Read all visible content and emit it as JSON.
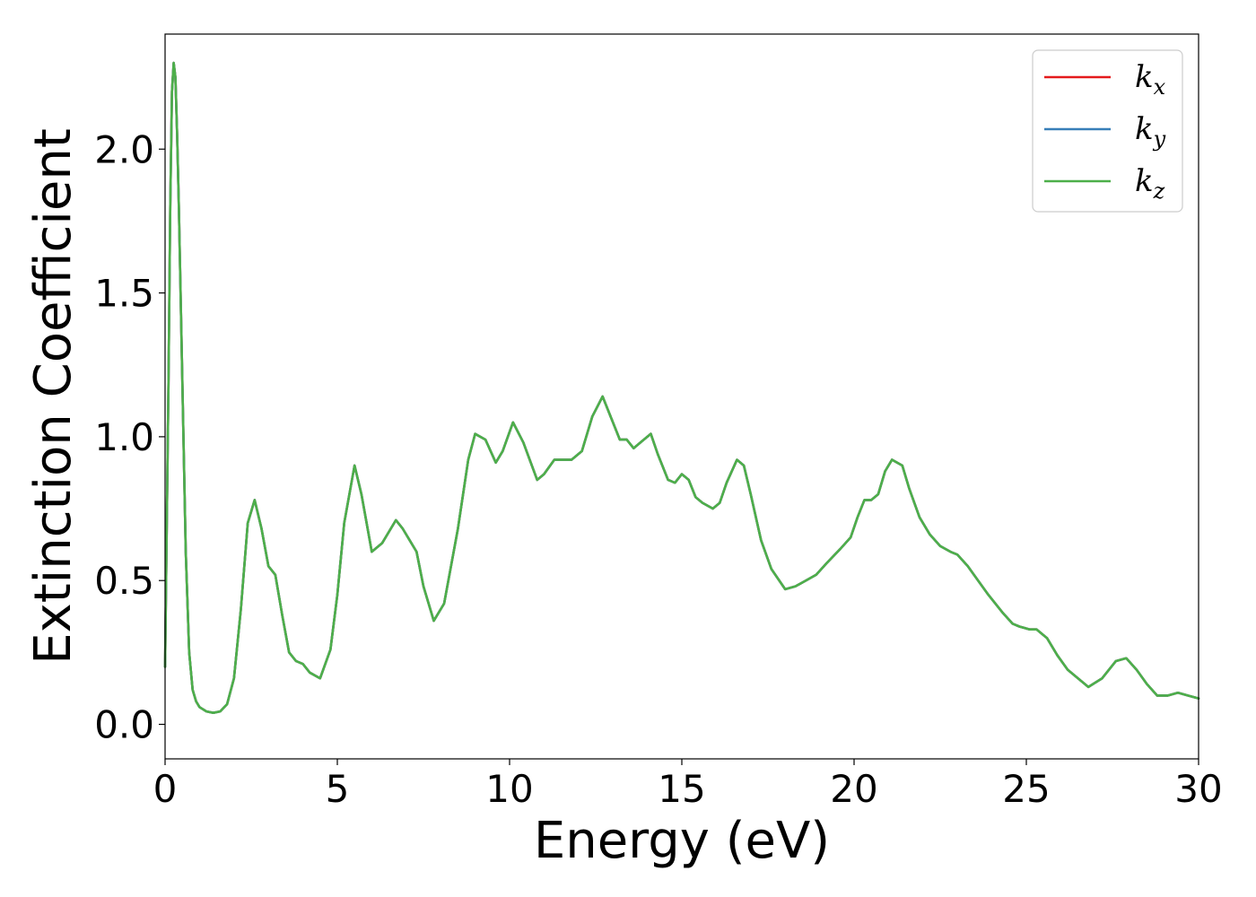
{
  "chart_data": {
    "type": "line",
    "title": "",
    "xlabel": "Energy (eV)",
    "ylabel": "Extinction Coefficient",
    "xlim": [
      0,
      30
    ],
    "ylim": [
      -0.12,
      2.4
    ],
    "xticks": [
      0,
      5,
      10,
      15,
      20,
      25,
      30
    ],
    "xtick_labels": [
      "0",
      "5",
      "10",
      "15",
      "20",
      "25",
      "30"
    ],
    "yticks": [
      0.0,
      0.5,
      1.0,
      1.5,
      2.0
    ],
    "ytick_labels": [
      "0.0",
      "0.5",
      "1.0",
      "1.5",
      "2.0"
    ],
    "grid": false,
    "legend_position": "top-right",
    "x": [
      0,
      0.1,
      0.15,
      0.2,
      0.25,
      0.3,
      0.35,
      0.4,
      0.5,
      0.6,
      0.7,
      0.8,
      0.9,
      1.0,
      1.2,
      1.4,
      1.6,
      1.8,
      2.0,
      2.2,
      2.4,
      2.6,
      2.8,
      3.0,
      3.2,
      3.4,
      3.6,
      3.8,
      4.0,
      4.2,
      4.5,
      4.8,
      5.0,
      5.2,
      5.5,
      5.7,
      6.0,
      6.3,
      6.7,
      6.9,
      7.1,
      7.3,
      7.5,
      7.8,
      8.1,
      8.5,
      8.8,
      9.0,
      9.3,
      9.6,
      9.8,
      10.1,
      10.4,
      10.8,
      11.0,
      11.3,
      11.5,
      11.8,
      12.1,
      12.4,
      12.7,
      13.0,
      13.2,
      13.4,
      13.6,
      13.8,
      14.1,
      14.3,
      14.6,
      14.8,
      15.0,
      15.2,
      15.4,
      15.6,
      15.9,
      16.1,
      16.3,
      16.6,
      16.8,
      17.0,
      17.3,
      17.6,
      18.0,
      18.3,
      18.6,
      18.9,
      19.2,
      19.6,
      19.9,
      20.1,
      20.3,
      20.5,
      20.7,
      20.9,
      21.1,
      21.4,
      21.6,
      21.9,
      22.2,
      22.5,
      22.8,
      23.0,
      23.3,
      23.6,
      23.9,
      24.3,
      24.6,
      24.8,
      25.1,
      25.3,
      25.6,
      25.9,
      26.2,
      26.5,
      26.8,
      27.2,
      27.6,
      27.9,
      28.2,
      28.5,
      28.8,
      29.1,
      29.4,
      29.7,
      30.0
    ],
    "series": [
      {
        "name": "k_x",
        "color": "#e41a1c",
        "values": [
          0.2,
          1.2,
          1.8,
          2.2,
          2.3,
          2.25,
          2.05,
          1.8,
          1.2,
          0.6,
          0.25,
          0.12,
          0.08,
          0.06,
          0.045,
          0.04,
          0.045,
          0.07,
          0.16,
          0.4,
          0.7,
          0.78,
          0.68,
          0.55,
          0.52,
          0.38,
          0.25,
          0.22,
          0.21,
          0.18,
          0.16,
          0.26,
          0.45,
          0.7,
          0.9,
          0.8,
          0.6,
          0.63,
          0.71,
          0.68,
          0.64,
          0.6,
          0.48,
          0.36,
          0.42,
          0.68,
          0.92,
          1.01,
          0.99,
          0.91,
          0.95,
          1.05,
          0.98,
          0.85,
          0.87,
          0.92,
          0.92,
          0.92,
          0.95,
          1.07,
          1.14,
          1.05,
          0.99,
          0.99,
          0.96,
          0.98,
          1.01,
          0.94,
          0.85,
          0.84,
          0.87,
          0.85,
          0.79,
          0.77,
          0.75,
          0.77,
          0.84,
          0.92,
          0.9,
          0.8,
          0.64,
          0.54,
          0.47,
          0.48,
          0.5,
          0.52,
          0.56,
          0.61,
          0.65,
          0.72,
          0.78,
          0.78,
          0.8,
          0.88,
          0.92,
          0.9,
          0.82,
          0.72,
          0.66,
          0.62,
          0.6,
          0.59,
          0.55,
          0.5,
          0.45,
          0.39,
          0.35,
          0.34,
          0.33,
          0.33,
          0.3,
          0.24,
          0.19,
          0.16,
          0.13,
          0.16,
          0.22,
          0.23,
          0.19,
          0.14,
          0.1,
          0.1,
          0.11,
          0.1,
          0.09
        ]
      },
      {
        "name": "k_y",
        "color": "#377eb8",
        "values": [
          0.2,
          1.2,
          1.8,
          2.2,
          2.3,
          2.25,
          2.05,
          1.8,
          1.2,
          0.6,
          0.25,
          0.12,
          0.08,
          0.06,
          0.045,
          0.04,
          0.045,
          0.07,
          0.16,
          0.4,
          0.7,
          0.78,
          0.68,
          0.55,
          0.52,
          0.38,
          0.25,
          0.22,
          0.21,
          0.18,
          0.16,
          0.26,
          0.45,
          0.7,
          0.9,
          0.8,
          0.6,
          0.63,
          0.71,
          0.68,
          0.64,
          0.6,
          0.48,
          0.36,
          0.42,
          0.68,
          0.92,
          1.01,
          0.99,
          0.91,
          0.95,
          1.05,
          0.98,
          0.85,
          0.87,
          0.92,
          0.92,
          0.92,
          0.95,
          1.07,
          1.14,
          1.05,
          0.99,
          0.99,
          0.96,
          0.98,
          1.01,
          0.94,
          0.85,
          0.84,
          0.87,
          0.85,
          0.79,
          0.77,
          0.75,
          0.77,
          0.84,
          0.92,
          0.9,
          0.8,
          0.64,
          0.54,
          0.47,
          0.48,
          0.5,
          0.52,
          0.56,
          0.61,
          0.65,
          0.72,
          0.78,
          0.78,
          0.8,
          0.88,
          0.92,
          0.9,
          0.82,
          0.72,
          0.66,
          0.62,
          0.6,
          0.59,
          0.55,
          0.5,
          0.45,
          0.39,
          0.35,
          0.34,
          0.33,
          0.33,
          0.3,
          0.24,
          0.19,
          0.16,
          0.13,
          0.16,
          0.22,
          0.23,
          0.19,
          0.14,
          0.1,
          0.1,
          0.11,
          0.1,
          0.09
        ]
      },
      {
        "name": "k_z",
        "color": "#4daf4a",
        "values": [
          0.2,
          1.2,
          1.8,
          2.2,
          2.3,
          2.25,
          2.05,
          1.8,
          1.2,
          0.6,
          0.25,
          0.12,
          0.08,
          0.06,
          0.045,
          0.04,
          0.045,
          0.07,
          0.16,
          0.4,
          0.7,
          0.78,
          0.68,
          0.55,
          0.52,
          0.38,
          0.25,
          0.22,
          0.21,
          0.18,
          0.16,
          0.26,
          0.45,
          0.7,
          0.9,
          0.8,
          0.6,
          0.63,
          0.71,
          0.68,
          0.64,
          0.6,
          0.48,
          0.36,
          0.42,
          0.68,
          0.92,
          1.01,
          0.99,
          0.91,
          0.95,
          1.05,
          0.98,
          0.85,
          0.87,
          0.92,
          0.92,
          0.92,
          0.95,
          1.07,
          1.14,
          1.05,
          0.99,
          0.99,
          0.96,
          0.98,
          1.01,
          0.94,
          0.85,
          0.84,
          0.87,
          0.85,
          0.79,
          0.77,
          0.75,
          0.77,
          0.84,
          0.92,
          0.9,
          0.8,
          0.64,
          0.54,
          0.47,
          0.48,
          0.5,
          0.52,
          0.56,
          0.61,
          0.65,
          0.72,
          0.78,
          0.78,
          0.8,
          0.88,
          0.92,
          0.9,
          0.82,
          0.72,
          0.66,
          0.62,
          0.6,
          0.59,
          0.55,
          0.5,
          0.45,
          0.39,
          0.35,
          0.34,
          0.33,
          0.33,
          0.3,
          0.24,
          0.19,
          0.16,
          0.13,
          0.16,
          0.22,
          0.23,
          0.19,
          0.14,
          0.1,
          0.1,
          0.11,
          0.1,
          0.09
        ]
      }
    ],
    "legend": [
      {
        "symbol": "k",
        "subscript": "x",
        "color": "#e41a1c"
      },
      {
        "symbol": "k",
        "subscript": "y",
        "color": "#377eb8"
      },
      {
        "symbol": "k",
        "subscript": "z",
        "color": "#4daf4a"
      }
    ]
  }
}
